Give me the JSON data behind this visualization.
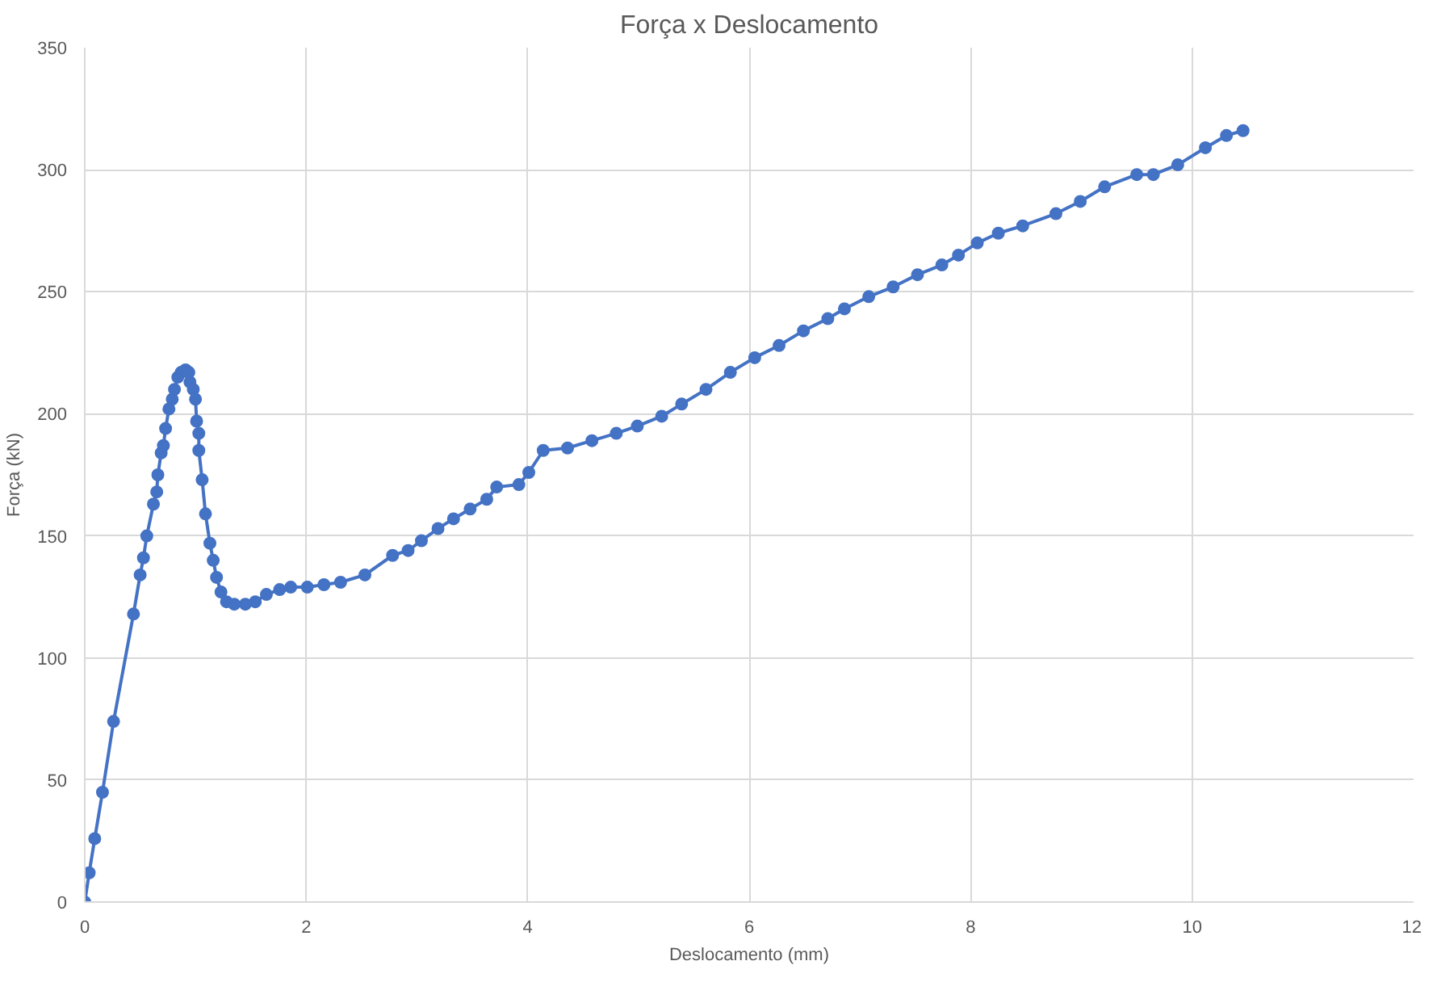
{
  "chart_data": {
    "type": "line",
    "title": "Força x Deslocamento",
    "xlabel": "Deslocamento (mm)",
    "ylabel": "Força (kN)",
    "x": [
      0,
      0.04,
      0.09,
      0.16,
      0.26,
      0.44,
      0.5,
      0.53,
      0.56,
      0.62,
      0.65,
      0.66,
      0.69,
      0.71,
      0.73,
      0.76,
      0.79,
      0.81,
      0.84,
      0.87,
      0.91,
      0.94,
      0.95,
      0.98,
      1.0,
      1.01,
      1.03,
      1.03,
      1.06,
      1.09,
      1.13,
      1.16,
      1.19,
      1.23,
      1.28,
      1.35,
      1.45,
      1.54,
      1.64,
      1.76,
      1.86,
      2.01,
      2.16,
      2.31,
      2.53,
      2.78,
      2.92,
      3.04,
      3.19,
      3.33,
      3.48,
      3.63,
      3.72,
      3.92,
      4.01,
      4.14,
      4.36,
      4.58,
      4.8,
      4.99,
      5.21,
      5.39,
      5.61,
      5.83,
      6.05,
      6.27,
      6.49,
      6.71,
      6.86,
      7.08,
      7.3,
      7.52,
      7.74,
      7.89,
      8.06,
      8.25,
      8.47,
      8.77,
      8.99,
      9.21,
      9.5,
      9.65,
      9.87,
      10.12,
      10.31,
      10.46
    ],
    "series": [
      {
        "color": "#4472c4",
        "values": [
          0,
          12,
          26,
          45,
          74,
          118,
          134,
          141,
          150,
          163,
          168,
          175,
          184,
          187,
          194,
          202,
          206,
          210,
          215,
          217,
          218,
          217,
          213,
          210,
          206,
          197,
          192,
          185,
          173,
          159,
          147,
          140,
          133,
          127,
          123,
          122,
          122,
          123,
          126,
          128,
          129,
          129,
          130,
          131,
          134,
          142,
          144,
          148,
          153,
          157,
          161,
          165,
          170,
          171,
          176,
          185,
          186,
          189,
          192,
          195,
          199,
          204,
          210,
          217,
          223,
          228,
          234,
          239,
          243,
          248,
          252,
          257,
          261,
          265,
          270,
          274,
          277,
          282,
          287,
          293,
          298,
          298,
          302,
          309,
          314,
          316
        ]
      }
    ],
    "xlim": [
      0,
      12
    ],
    "xticks": [
      0,
      2,
      4,
      6,
      8,
      10,
      12
    ],
    "ylim": [
      0,
      350
    ],
    "yticks": [
      0,
      50,
      100,
      150,
      200,
      250,
      300,
      350
    ],
    "grid": true,
    "marker": "circle",
    "line_style": "solid"
  }
}
